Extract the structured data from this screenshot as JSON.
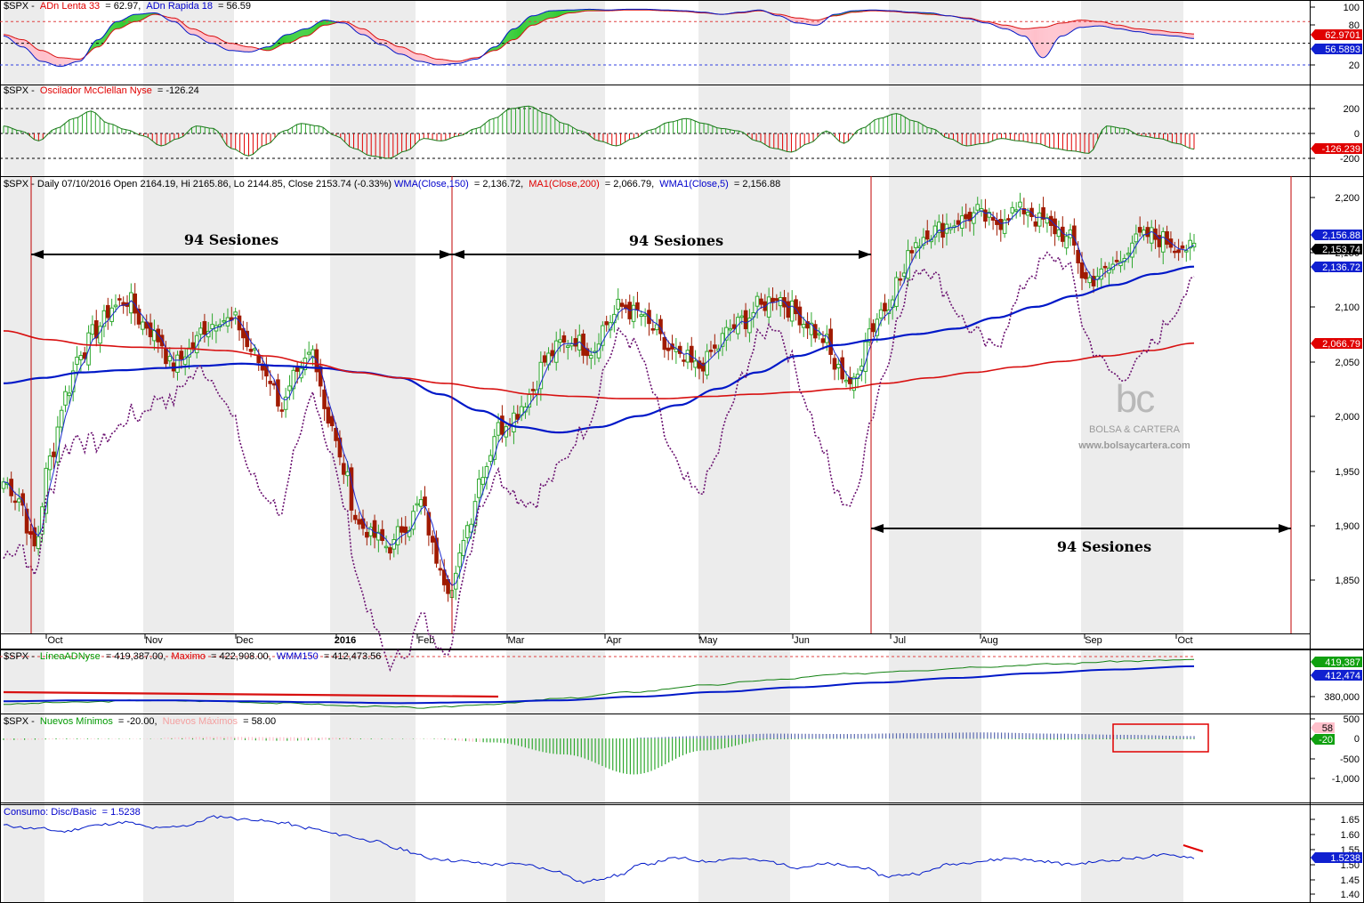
{
  "colors": {
    "up": "#2ea82e",
    "down": "#a01a00",
    "wma150": "#0018c8",
    "ma200": "#d81010",
    "wma5": "#1a2ad0",
    "dotted": "#6a1070",
    "green_fill": "#33cc33",
    "pink_fill": "#ffc0cb",
    "marker_red": "#e00000",
    "marker_blue": "#1020d0",
    "marker_green": "#10a010"
  },
  "axis_months": [
    "Oct",
    "Nov",
    "Dec",
    "2016",
    "Feb",
    "Mar",
    "Apr",
    "May",
    "Jun",
    "Jul",
    "Aug",
    "Sep",
    "Oct"
  ],
  "panels": {
    "adn": {
      "prefix": "$SPX - ",
      "lenta": "ADn Lenta 33",
      "lenta_val": " = 62.97, ",
      "rapida": "ADn Rapida 18",
      "rapida_val": " = 56.59",
      "ticks": [
        "100",
        "80",
        "20"
      ],
      "markers": [
        "62.9701",
        "56.5893"
      ]
    },
    "mcclellan": {
      "prefix": "$SPX - ",
      "name": "Oscilador McClellan Nyse",
      "val": " = -126.24",
      "ticks": [
        "200",
        "0",
        "-200"
      ],
      "marker": "-126.239"
    },
    "price": {
      "title_main": "$SPX - Daily 07/10/2016 Open 2164.19, Hi 2165.86, Lo 2144.85, Close 2153.74 (-0.33%)",
      "wma150_label": "WMA(Close,150)",
      "wma150_val": " = 2,136.72, ",
      "ma200_label": "MA1(Close,200)",
      "ma200_val": " = 2,066.79, ",
      "wma5_label": "WMA1(Close,5)",
      "wma5_val": " = 2,156.88",
      "ticks": [
        "2,200",
        "2,150",
        "2,100",
        "2,050",
        "2,000",
        "1,950",
        "1,900",
        "1,850"
      ],
      "markers": [
        "2,156.88",
        "2,153.74",
        "2,136.72",
        "2,066.79"
      ],
      "annotations": [
        "94 Sesiones",
        "94 Sesiones",
        "94 Sesiones"
      ]
    },
    "adline": {
      "prefix": "$SPX - ",
      "name": "LíneaADNyse",
      "val": " = 419,387.00, ",
      "max_label": "Maximo",
      "max_val": " = 422,908.00, ",
      "wmm_label": "WMM150",
      "wmm_val": " = 412,473.56",
      "ticks": [
        "380,000"
      ],
      "markers": [
        "419,387",
        "412,474"
      ]
    },
    "highslows": {
      "prefix": "$SPX - ",
      "min_label": "Nuevos Mínimos",
      "min_val": " = -20.00, ",
      "max_label": "Nuevos Máximos",
      "max_val": " = 58.00",
      "ticks": [
        "500",
        "0",
        "-500",
        "-1,000"
      ],
      "markers": [
        "58",
        "-20"
      ]
    },
    "consumo": {
      "name": "Consumo: Disc/Basic",
      "val": " = 1.5238",
      "ticks": [
        "1.65",
        "1.60",
        "1.55",
        "1.50",
        "1.45",
        "1.40"
      ],
      "marker": "1.5238"
    }
  },
  "watermark": {
    "logo": "bc",
    "name": "BOLSA & CARTERA",
    "url": "www.bolsaycartera.com"
  },
  "chart_data": [
    {
      "type": "line",
      "title": "$SPX - ADn Lenta 33 / ADn Rapida 18",
      "series": [
        {
          "name": "ADn Lenta 33",
          "values": [
            62,
            55,
            40,
            30,
            28,
            45,
            70,
            80,
            90,
            85,
            70,
            60,
            50,
            45,
            40,
            50,
            60,
            75,
            80,
            70,
            55,
            45,
            35,
            28,
            25,
            30,
            40,
            55,
            75,
            85,
            92,
            95,
            95,
            96,
            96,
            95,
            94,
            92,
            90,
            92,
            95,
            90,
            85,
            82,
            88,
            93,
            95,
            94,
            92,
            90,
            88,
            85,
            80,
            75,
            70,
            72,
            78,
            82,
            80,
            75,
            70,
            68,
            65,
            62.97
          ]
        },
        {
          "name": "ADn Rapida 18",
          "values": [
            60,
            45,
            25,
            18,
            25,
            55,
            80,
            90,
            92,
            80,
            62,
            50,
            40,
            38,
            45,
            62,
            70,
            82,
            78,
            62,
            48,
            35,
            25,
            20,
            22,
            28,
            45,
            70,
            88,
            95,
            96,
            97,
            96,
            97,
            97,
            96,
            95,
            93,
            90,
            93,
            96,
            88,
            78,
            75,
            90,
            95,
            96,
            95,
            93,
            92,
            88,
            84,
            78,
            70,
            60,
            30,
            60,
            72,
            74,
            70,
            66,
            62,
            60,
            56.59
          ]
        }
      ],
      "ylim": [
        0,
        100
      ]
    },
    {
      "type": "bar",
      "title": "$SPX - Oscilador McClellan Nyse",
      "values": [
        60,
        20,
        -60,
        40,
        120,
        180,
        80,
        30,
        -20,
        -100,
        -40,
        60,
        40,
        -120,
        -180,
        -90,
        20,
        80,
        60,
        -20,
        -120,
        -180,
        -200,
        -140,
        -40,
        -60,
        -20,
        40,
        120,
        200,
        220,
        160,
        80,
        20,
        -60,
        -100,
        -40,
        30,
        90,
        120,
        80,
        40,
        20,
        -60,
        -120,
        -150,
        -80,
        20,
        -80,
        40,
        120,
        160,
        100,
        40,
        -40,
        -100,
        -80,
        -40,
        -60,
        -80,
        -120,
        -140,
        -160,
        60,
        40,
        -20,
        -40,
        -80,
        -126.24
      ],
      "ylim": [
        -250,
        250
      ]
    },
    {
      "type": "line",
      "title": "$SPX - Daily 07/10/2016",
      "x_range": [
        "2015-09",
        "2016-10"
      ],
      "series": [
        {
          "name": "$SPX Close",
          "values": [
            1940,
            1925,
            1880,
            1960,
            2020,
            2060,
            2080,
            2100,
            2105,
            2085,
            2070,
            2045,
            2060,
            2080,
            2090,
            2085,
            2060,
            2040,
            2010,
            2035,
            2060,
            2000,
            1950,
            1900,
            1890,
            1880,
            1900,
            1920,
            1870,
            1840,
            1900,
            1950,
            1990,
            2000,
            2020,
            2050,
            2065,
            2070,
            2060,
            2085,
            2100,
            2095,
            2080,
            2060,
            2050,
            2045,
            2060,
            2080,
            2090,
            2100,
            2110,
            2095,
            2085,
            2070,
            2040,
            2030,
            2080,
            2100,
            2125,
            2160,
            2170,
            2175,
            2180,
            2185,
            2175,
            2185,
            2190,
            2180,
            2170,
            2160,
            2125,
            2130,
            2140,
            2160,
            2165,
            2160,
            2156,
            2153.74
          ]
        },
        {
          "name": "WMA(Close,150)",
          "values": [
            2030,
            2035,
            2040,
            2042,
            2044,
            2046,
            2048,
            2046,
            2044,
            2040,
            2035,
            2020,
            2005,
            1990,
            1985,
            1990,
            2000,
            2010,
            2025,
            2040,
            2055,
            2065,
            2070,
            2075,
            2080,
            2090,
            2100,
            2110,
            2120,
            2130,
            2136.72
          ]
        },
        {
          "name": "MA1(Close,200)",
          "values": [
            2078,
            2070,
            2065,
            2063,
            2062,
            2060,
            2055,
            2048,
            2040,
            2035,
            2030,
            2025,
            2020,
            2018,
            2016,
            2016,
            2018,
            2020,
            2022,
            2025,
            2030,
            2035,
            2040,
            2045,
            2050,
            2055,
            2060,
            2066.79
          ]
        }
      ],
      "ylim": [
        1820,
        2210
      ]
    },
    {
      "type": "line",
      "title": "$SPX - LíneaADNyse",
      "series": [
        {
          "name": "LíneaADNyse",
          "values": [
            372000,
            374000,
            376000,
            375000,
            373000,
            370000,
            368000,
            372000,
            378000,
            385000,
            392000,
            398000,
            404000,
            408000,
            412000,
            415000,
            418000,
            419387
          ]
        },
        {
          "name": "WMM150",
          "values": [
            375000,
            376000,
            376000,
            375000,
            374000,
            373000,
            374000,
            376000,
            380000,
            385000,
            390000,
            395000,
            400000,
            405000,
            409000,
            412473.56
          ]
        }
      ]
    },
    {
      "type": "bar",
      "title": "$SPX - Nuevos Mínimos / Nuevos Máximos",
      "series": [
        {
          "name": "Nuevos Mínimos",
          "values": [
            -40,
            -20,
            -10,
            -30,
            -60,
            -20,
            -10,
            -100,
            -400,
            -900,
            -300,
            -20,
            -10,
            -5,
            -10,
            -30,
            -20,
            -20
          ]
        },
        {
          "name": "Nuevos Máximos",
          "values": [
            10,
            20,
            15,
            40,
            30,
            20,
            5,
            10,
            5,
            20,
            60,
            120,
            110,
            130,
            150,
            120,
            90,
            58
          ]
        }
      ],
      "ylim": [
        -1100,
        600
      ]
    },
    {
      "type": "line",
      "title": "Consumo: Disc/Basic",
      "series": [
        {
          "name": "Consumo: Disc/Basic",
          "values": [
            1.63,
            1.62,
            1.61,
            1.63,
            1.64,
            1.62,
            1.63,
            1.66,
            1.65,
            1.64,
            1.62,
            1.6,
            1.58,
            1.55,
            1.52,
            1.51,
            1.5,
            1.5,
            1.48,
            1.44,
            1.46,
            1.5,
            1.52,
            1.51,
            1.52,
            1.51,
            1.49,
            1.5,
            1.49,
            1.46,
            1.47,
            1.5,
            1.51,
            1.52,
            1.51,
            1.5,
            1.51,
            1.52,
            1.53,
            1.5238
          ]
        }
      ],
      "ylim": [
        1.39,
        1.67
      ]
    }
  ]
}
